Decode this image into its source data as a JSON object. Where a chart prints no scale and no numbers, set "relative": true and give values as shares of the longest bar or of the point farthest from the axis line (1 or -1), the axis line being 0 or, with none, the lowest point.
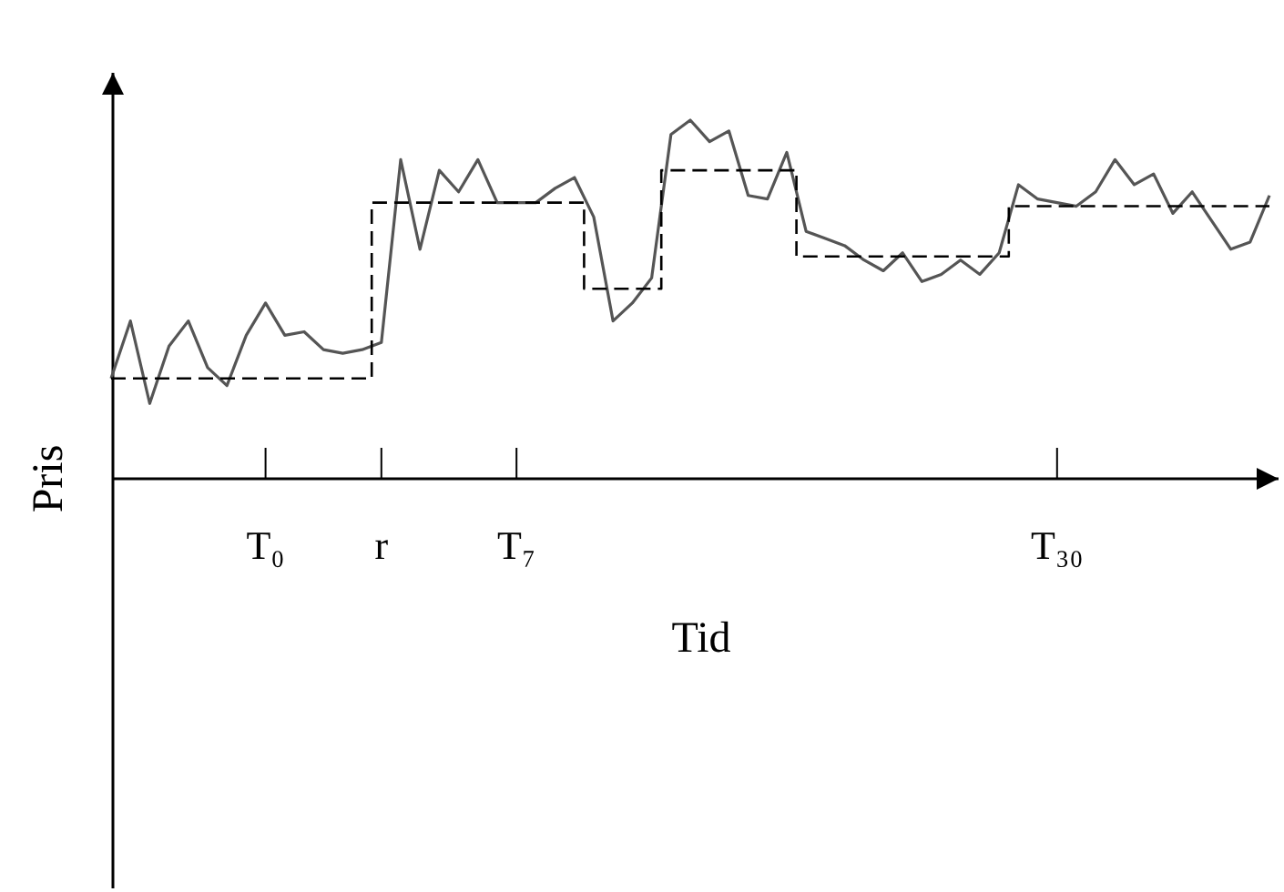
{
  "chart_data": {
    "type": "line",
    "relative": true,
    "xlabel": "Tid",
    "ylabel": "Pris",
    "categories": [
      null,
      null,
      null,
      null,
      null,
      null,
      null,
      null,
      "T₀",
      null,
      null,
      null,
      null,
      null,
      "r",
      null,
      null,
      null,
      null,
      null,
      null,
      "T₇",
      null,
      null,
      null,
      null,
      null,
      null,
      null,
      null,
      null,
      null,
      null,
      null,
      null,
      null,
      null,
      null,
      null,
      null,
      null,
      null,
      null,
      null,
      null,
      null,
      null,
      null,
      null,
      "T₃₀",
      null,
      null,
      null,
      null,
      null,
      null,
      null,
      null,
      null,
      null,
      null
    ],
    "grid": false,
    "marker": "none",
    "series": [
      {
        "type": "line",
        "color": "#555555",
        "line_style": "solid",
        "values": [
          0.28,
          0.44,
          0.21,
          0.37,
          0.44,
          0.31,
          0.26,
          0.4,
          0.49,
          0.4,
          0.41,
          0.36,
          0.35,
          0.36,
          0.38,
          0.89,
          0.64,
          0.86,
          0.8,
          0.89,
          0.77,
          0.77,
          0.77,
          0.81,
          0.84,
          0.73,
          0.44,
          0.49,
          0.56,
          0.96,
          1,
          0.94,
          0.97,
          0.79,
          0.78,
          0.91,
          0.69,
          0.67,
          0.65,
          0.61,
          0.58,
          0.63,
          0.55,
          0.57,
          0.61,
          0.57,
          0.63,
          0.82,
          0.78,
          0.77,
          0.76,
          0.8,
          0.89,
          0.82,
          0.85,
          0.74,
          0.8,
          0.72,
          0.64,
          0.66,
          0.79
        ]
      },
      {
        "type": "step",
        "color": "#000000",
        "line_style": "dashed",
        "values": [
          0.28,
          0.28,
          0.28,
          0.28,
          0.28,
          0.28,
          0.28,
          0.28,
          0.28,
          0.28,
          0.28,
          0.28,
          0.28,
          0.28,
          0.77,
          0.77,
          0.77,
          0.77,
          0.77,
          0.77,
          0.77,
          0.77,
          0.77,
          0.77,
          0.77,
          0.53,
          0.53,
          0.53,
          0.53,
          0.86,
          0.86,
          0.86,
          0.86,
          0.86,
          0.86,
          0.86,
          0.62,
          0.62,
          0.62,
          0.62,
          0.62,
          0.62,
          0.62,
          0.62,
          0.62,
          0.62,
          0.62,
          0.76,
          0.76,
          0.76,
          0.76,
          0.76,
          0.76,
          0.76,
          0.76,
          0.76,
          0.76,
          0.76,
          0.76,
          0.76,
          0.76
        ]
      }
    ]
  }
}
